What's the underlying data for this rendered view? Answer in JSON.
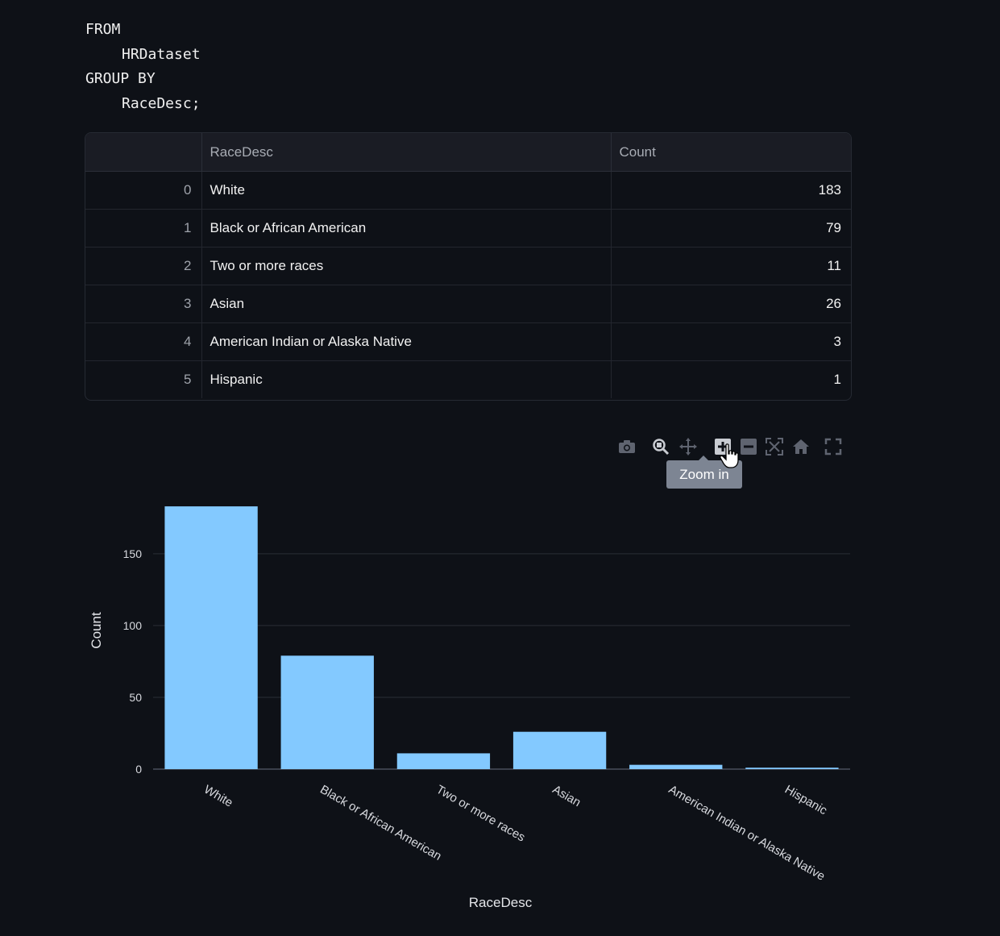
{
  "code": {
    "lines": [
      {
        "text": "FROM",
        "indent": false
      },
      {
        "text": "HRDataset",
        "indent": true
      },
      {
        "text": "GROUP BY",
        "indent": false
      },
      {
        "text": "RaceDesc;",
        "indent": true
      }
    ]
  },
  "table": {
    "columns": [
      "",
      "RaceDesc",
      "Count"
    ],
    "rows": [
      {
        "index": "0",
        "race": "White",
        "count": "183"
      },
      {
        "index": "1",
        "race": "Black or African American",
        "count": "79"
      },
      {
        "index": "2",
        "race": "Two or more races",
        "count": "11"
      },
      {
        "index": "3",
        "race": "Asian",
        "count": "26"
      },
      {
        "index": "4",
        "race": "American Indian or Alaska Native",
        "count": "3"
      },
      {
        "index": "5",
        "race": "Hispanic",
        "count": "1"
      }
    ]
  },
  "toolbar": {
    "icons": [
      "camera-icon",
      "zoom-icon",
      "pan-icon",
      "zoom-in-icon",
      "zoom-out-icon",
      "autoscale-icon",
      "home-icon",
      "fullscreen-icon"
    ],
    "tooltip": "Zoom in"
  },
  "chart_data": {
    "type": "bar",
    "categories": [
      "White",
      "Black or African American",
      "Two or more races",
      "Asian",
      "American Indian or Alaska Native",
      "Hispanic"
    ],
    "values": [
      183,
      79,
      11,
      26,
      3,
      1
    ],
    "xlabel": "RaceDesc",
    "ylabel": "Count",
    "ylim": [
      0,
      190
    ],
    "yticks": [
      0,
      50,
      100,
      150
    ],
    "bar_color": "#83c9ff",
    "grid": true
  }
}
